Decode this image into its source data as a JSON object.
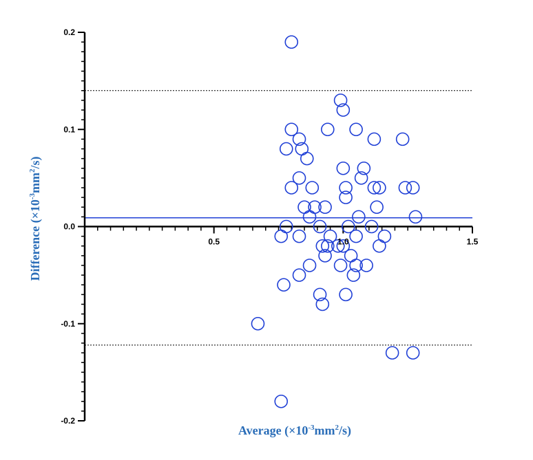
{
  "chart_data": {
    "type": "scatter",
    "title": "",
    "xlabel": {
      "prefix": "Average (×10",
      "exp": "-3",
      "mid": "mm",
      "exp2": "2",
      "suffix": "/s)"
    },
    "ylabel": {
      "prefix": "Difference (×10",
      "exp": "-3",
      "mid": "mm",
      "exp2": "2",
      "suffix": "/s)"
    },
    "xlim": [
      0,
      1.5
    ],
    "ylim": [
      -0.2,
      0.2
    ],
    "x_ticks": [
      0.5,
      1.0,
      1.5
    ],
    "x_tick_labels": [
      "0.5",
      "1.0",
      "1.5"
    ],
    "y_ticks": [
      -0.2,
      -0.1,
      0.0,
      0.1,
      0.2
    ],
    "y_tick_labels": [
      "-0.2",
      "-0.1",
      "0.0",
      "0.1",
      "0.2"
    ],
    "mean_difference": 0.009,
    "upper_limit_of_agreement": 0.14,
    "lower_limit_of_agreement": -0.122,
    "colors": {
      "points": "#1f3fd6",
      "mean_line": "#1f3fd6",
      "limit_lines": "#000000",
      "axis_title": "#2a6db8"
    },
    "points": [
      {
        "x": 0.8,
        "y": 0.19
      },
      {
        "x": 0.99,
        "y": 0.13
      },
      {
        "x": 1.0,
        "y": 0.12
      },
      {
        "x": 0.8,
        "y": 0.1
      },
      {
        "x": 0.94,
        "y": 0.1
      },
      {
        "x": 1.05,
        "y": 0.1
      },
      {
        "x": 0.83,
        "y": 0.09
      },
      {
        "x": 1.12,
        "y": 0.09
      },
      {
        "x": 1.23,
        "y": 0.09
      },
      {
        "x": 0.78,
        "y": 0.08
      },
      {
        "x": 0.84,
        "y": 0.08
      },
      {
        "x": 0.86,
        "y": 0.07
      },
      {
        "x": 1.0,
        "y": 0.06
      },
      {
        "x": 1.08,
        "y": 0.06
      },
      {
        "x": 0.83,
        "y": 0.05
      },
      {
        "x": 1.07,
        "y": 0.05
      },
      {
        "x": 0.8,
        "y": 0.04
      },
      {
        "x": 0.88,
        "y": 0.04
      },
      {
        "x": 1.01,
        "y": 0.04
      },
      {
        "x": 1.12,
        "y": 0.04
      },
      {
        "x": 1.14,
        "y": 0.04
      },
      {
        "x": 1.24,
        "y": 0.04
      },
      {
        "x": 1.27,
        "y": 0.04
      },
      {
        "x": 1.01,
        "y": 0.03
      },
      {
        "x": 0.85,
        "y": 0.02
      },
      {
        "x": 0.89,
        "y": 0.02
      },
      {
        "x": 0.93,
        "y": 0.02
      },
      {
        "x": 1.13,
        "y": 0.02
      },
      {
        "x": 0.87,
        "y": 0.01
      },
      {
        "x": 1.06,
        "y": 0.01
      },
      {
        "x": 1.28,
        "y": 0.01
      },
      {
        "x": 0.78,
        "y": 0.0
      },
      {
        "x": 0.91,
        "y": 0.0
      },
      {
        "x": 1.02,
        "y": 0.0
      },
      {
        "x": 1.11,
        "y": 0.0
      },
      {
        "x": 0.76,
        "y": -0.01
      },
      {
        "x": 0.83,
        "y": -0.01
      },
      {
        "x": 0.95,
        "y": -0.01
      },
      {
        "x": 1.05,
        "y": -0.01
      },
      {
        "x": 1.16,
        "y": -0.01
      },
      {
        "x": 0.92,
        "y": -0.02
      },
      {
        "x": 0.94,
        "y": -0.02
      },
      {
        "x": 0.98,
        "y": -0.02
      },
      {
        "x": 1.0,
        "y": -0.02
      },
      {
        "x": 1.14,
        "y": -0.02
      },
      {
        "x": 0.93,
        "y": -0.03
      },
      {
        "x": 1.03,
        "y": -0.03
      },
      {
        "x": 0.87,
        "y": -0.04
      },
      {
        "x": 0.99,
        "y": -0.04
      },
      {
        "x": 1.05,
        "y": -0.04
      },
      {
        "x": 1.09,
        "y": -0.04
      },
      {
        "x": 0.83,
        "y": -0.05
      },
      {
        "x": 1.04,
        "y": -0.05
      },
      {
        "x": 0.77,
        "y": -0.06
      },
      {
        "x": 0.91,
        "y": -0.07
      },
      {
        "x": 1.01,
        "y": -0.07
      },
      {
        "x": 0.92,
        "y": -0.08
      },
      {
        "x": 0.67,
        "y": -0.1
      },
      {
        "x": 1.19,
        "y": -0.13
      },
      {
        "x": 1.27,
        "y": -0.13
      },
      {
        "x": 0.76,
        "y": -0.18
      }
    ]
  }
}
